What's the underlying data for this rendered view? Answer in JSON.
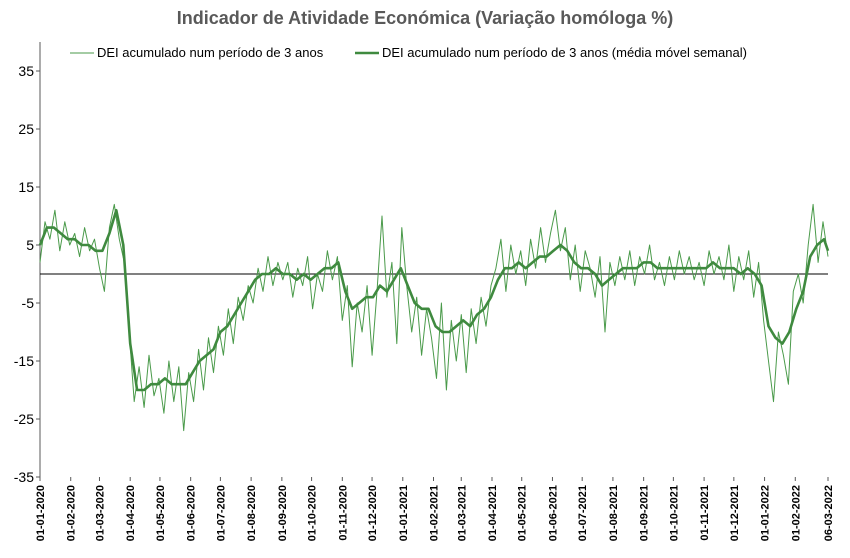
{
  "chart_data": {
    "type": "line",
    "title": "Indicador de Atividade Económica (Variação homóloga %)",
    "xlabel": "",
    "ylabel": "",
    "ylim": [
      -35,
      40
    ],
    "yticks": [
      -35,
      -25,
      -15,
      -5,
      5,
      15,
      25,
      35
    ],
    "x_tick_labels": [
      "01-01-2020",
      "01-02-2020",
      "01-03-2020",
      "01-04-2020",
      "01-05-2020",
      "01-06-2020",
      "01-07-2020",
      "01-08-2020",
      "01-09-2020",
      "01-10-2020",
      "01-11-2020",
      "01-12-2020",
      "01-01-2021",
      "01-02-2021",
      "01-03-2021",
      "01-04-2021",
      "01-05-2021",
      "01-06-2021",
      "01-07-2021",
      "01-08-2021",
      "01-09-2021",
      "01-10-2021",
      "01-11-2021",
      "01-12-2021",
      "01-01-2022",
      "01-02-2022",
      "06-03-2022"
    ],
    "grid": false,
    "legend_position": "top",
    "zero_line": true,
    "colors": {
      "daily": "#4a9a4a",
      "weekly": "#3f8a3f",
      "axis": "#595959"
    },
    "series": [
      {
        "name": "DEI acumulado num período de 3 anos",
        "style": "thin",
        "points": [
          [
            "2020-01-01",
            2
          ],
          [
            "2020-01-06",
            9
          ],
          [
            "2020-01-11",
            6
          ],
          [
            "2020-01-16",
            11
          ],
          [
            "2020-01-21",
            4
          ],
          [
            "2020-01-26",
            9
          ],
          [
            "2020-01-31",
            5
          ],
          [
            "2020-02-05",
            7
          ],
          [
            "2020-02-10",
            3
          ],
          [
            "2020-02-15",
            8
          ],
          [
            "2020-02-20",
            4
          ],
          [
            "2020-02-25",
            6
          ],
          [
            "2020-03-01",
            1
          ],
          [
            "2020-03-06",
            -3
          ],
          [
            "2020-03-11",
            8
          ],
          [
            "2020-03-16",
            12
          ],
          [
            "2020-03-21",
            6
          ],
          [
            "2020-03-26",
            2
          ],
          [
            "2020-03-31",
            -10
          ],
          [
            "2020-04-05",
            -22
          ],
          [
            "2020-04-10",
            -16
          ],
          [
            "2020-04-15",
            -23
          ],
          [
            "2020-04-20",
            -14
          ],
          [
            "2020-04-25",
            -21
          ],
          [
            "2020-04-30",
            -18
          ],
          [
            "2020-05-05",
            -24
          ],
          [
            "2020-05-10",
            -15
          ],
          [
            "2020-05-15",
            -22
          ],
          [
            "2020-05-20",
            -16
          ],
          [
            "2020-05-25",
            -27
          ],
          [
            "2020-05-30",
            -17
          ],
          [
            "2020-06-04",
            -22
          ],
          [
            "2020-06-09",
            -13
          ],
          [
            "2020-06-14",
            -20
          ],
          [
            "2020-06-19",
            -11
          ],
          [
            "2020-06-24",
            -17
          ],
          [
            "2020-06-29",
            -9
          ],
          [
            "2020-07-04",
            -14
          ],
          [
            "2020-07-09",
            -6
          ],
          [
            "2020-07-14",
            -12
          ],
          [
            "2020-07-19",
            -4
          ],
          [
            "2020-07-24",
            -8
          ],
          [
            "2020-07-29",
            -2
          ],
          [
            "2020-08-03",
            -5
          ],
          [
            "2020-08-08",
            1
          ],
          [
            "2020-08-13",
            -3
          ],
          [
            "2020-08-18",
            3
          ],
          [
            "2020-08-23",
            -2
          ],
          [
            "2020-08-28",
            2
          ],
          [
            "2020-09-02",
            -1
          ],
          [
            "2020-09-07",
            2
          ],
          [
            "2020-09-12",
            -4
          ],
          [
            "2020-09-17",
            1
          ],
          [
            "2020-09-22",
            -2
          ],
          [
            "2020-09-27",
            3
          ],
          [
            "2020-10-02",
            -6
          ],
          [
            "2020-10-07",
            0
          ],
          [
            "2020-10-12",
            -3
          ],
          [
            "2020-10-17",
            4
          ],
          [
            "2020-10-22",
            -1
          ],
          [
            "2020-10-27",
            3
          ],
          [
            "2020-11-01",
            -8
          ],
          [
            "2020-11-06",
            -2
          ],
          [
            "2020-11-11",
            -16
          ],
          [
            "2020-11-16",
            -5
          ],
          [
            "2020-11-21",
            -10
          ],
          [
            "2020-11-26",
            -2
          ],
          [
            "2020-12-01",
            -14
          ],
          [
            "2020-12-06",
            -3
          ],
          [
            "2020-12-11",
            10
          ],
          [
            "2020-12-16",
            -4
          ],
          [
            "2020-12-21",
            2
          ],
          [
            "2020-12-26",
            -12
          ],
          [
            "2020-12-31",
            8
          ],
          [
            "2021-01-05",
            -2
          ],
          [
            "2021-01-10",
            -10
          ],
          [
            "2021-01-15",
            -4
          ],
          [
            "2021-01-20",
            -14
          ],
          [
            "2021-01-25",
            -6
          ],
          [
            "2021-01-30",
            -11
          ],
          [
            "2021-02-04",
            -18
          ],
          [
            "2021-02-09",
            -5
          ],
          [
            "2021-02-14",
            -20
          ],
          [
            "2021-02-19",
            -8
          ],
          [
            "2021-02-24",
            -15
          ],
          [
            "2021-03-01",
            -7
          ],
          [
            "2021-03-06",
            -17
          ],
          [
            "2021-03-11",
            -6
          ],
          [
            "2021-03-16",
            -12
          ],
          [
            "2021-03-21",
            -4
          ],
          [
            "2021-03-26",
            -9
          ],
          [
            "2021-03-31",
            -2
          ],
          [
            "2021-04-05",
            1
          ],
          [
            "2021-04-10",
            6
          ],
          [
            "2021-04-15",
            -3
          ],
          [
            "2021-04-20",
            5
          ],
          [
            "2021-04-25",
            0
          ],
          [
            "2021-04-30",
            4
          ],
          [
            "2021-05-05",
            -2
          ],
          [
            "2021-05-10",
            6
          ],
          [
            "2021-05-15",
            1
          ],
          [
            "2021-05-20",
            8
          ],
          [
            "2021-05-25",
            2
          ],
          [
            "2021-05-30",
            7
          ],
          [
            "2021-06-04",
            11
          ],
          [
            "2021-06-09",
            4
          ],
          [
            "2021-06-14",
            8
          ],
          [
            "2021-06-19",
            -1
          ],
          [
            "2021-06-24",
            5
          ],
          [
            "2021-06-29",
            -3
          ],
          [
            "2021-07-04",
            4
          ],
          [
            "2021-07-09",
            1
          ],
          [
            "2021-07-14",
            -4
          ],
          [
            "2021-07-19",
            3
          ],
          [
            "2021-07-24",
            -10
          ],
          [
            "2021-07-29",
            2
          ],
          [
            "2021-08-03",
            -2
          ],
          [
            "2021-08-08",
            3
          ],
          [
            "2021-08-13",
            -1
          ],
          [
            "2021-08-18",
            4
          ],
          [
            "2021-08-23",
            -2
          ],
          [
            "2021-08-28",
            3
          ],
          [
            "2021-09-02",
            0
          ],
          [
            "2021-09-07",
            5
          ],
          [
            "2021-09-12",
            -1
          ],
          [
            "2021-09-17",
            2
          ],
          [
            "2021-09-22",
            -2
          ],
          [
            "2021-09-27",
            3
          ],
          [
            "2021-10-02",
            -1
          ],
          [
            "2021-10-07",
            4
          ],
          [
            "2021-10-12",
            0
          ],
          [
            "2021-10-17",
            3
          ],
          [
            "2021-10-22",
            -1
          ],
          [
            "2021-10-27",
            2
          ],
          [
            "2021-11-01",
            -2
          ],
          [
            "2021-11-06",
            4
          ],
          [
            "2021-11-11",
            0
          ],
          [
            "2021-11-16",
            3
          ],
          [
            "2021-11-21",
            -1
          ],
          [
            "2021-11-26",
            5
          ],
          [
            "2021-12-01",
            -3
          ],
          [
            "2021-12-06",
            3
          ],
          [
            "2021-12-11",
            -1
          ],
          [
            "2021-12-16",
            4
          ],
          [
            "2021-12-21",
            -4
          ],
          [
            "2021-12-26",
            2
          ],
          [
            "2021-12-31",
            -8
          ],
          [
            "2022-01-05",
            -15
          ],
          [
            "2022-01-10",
            -22
          ],
          [
            "2022-01-15",
            -10
          ],
          [
            "2022-01-20",
            -14
          ],
          [
            "2022-01-25",
            -19
          ],
          [
            "2022-01-30",
            -3
          ],
          [
            "2022-02-04",
            0
          ],
          [
            "2022-02-09",
            -5
          ],
          [
            "2022-02-14",
            5
          ],
          [
            "2022-02-19",
            12
          ],
          [
            "2022-02-24",
            2
          ],
          [
            "2022-03-01",
            9
          ],
          [
            "2022-03-06",
            3
          ]
        ]
      },
      {
        "name": "DEI acumulado num período de 3 anos (média móvel semanal)",
        "style": "thick",
        "points": [
          [
            "2020-01-01",
            5
          ],
          [
            "2020-01-08",
            8
          ],
          [
            "2020-01-15",
            8
          ],
          [
            "2020-01-22",
            7
          ],
          [
            "2020-01-29",
            6
          ],
          [
            "2020-02-05",
            6
          ],
          [
            "2020-02-12",
            5
          ],
          [
            "2020-02-19",
            5
          ],
          [
            "2020-02-26",
            4
          ],
          [
            "2020-03-04",
            4
          ],
          [
            "2020-03-11",
            7
          ],
          [
            "2020-03-18",
            11
          ],
          [
            "2020-03-25",
            5
          ],
          [
            "2020-04-01",
            -12
          ],
          [
            "2020-04-08",
            -20
          ],
          [
            "2020-04-15",
            -20
          ],
          [
            "2020-04-22",
            -19
          ],
          [
            "2020-04-29",
            -19
          ],
          [
            "2020-05-06",
            -18
          ],
          [
            "2020-05-13",
            -19
          ],
          [
            "2020-05-20",
            -19
          ],
          [
            "2020-05-27",
            -19
          ],
          [
            "2020-06-03",
            -17
          ],
          [
            "2020-06-10",
            -15
          ],
          [
            "2020-06-17",
            -14
          ],
          [
            "2020-06-24",
            -13
          ],
          [
            "2020-07-01",
            -10
          ],
          [
            "2020-07-08",
            -9
          ],
          [
            "2020-07-15",
            -7
          ],
          [
            "2020-07-22",
            -5
          ],
          [
            "2020-07-29",
            -3
          ],
          [
            "2020-08-05",
            -1
          ],
          [
            "2020-08-12",
            0
          ],
          [
            "2020-08-19",
            0
          ],
          [
            "2020-08-26",
            1
          ],
          [
            "2020-09-02",
            0
          ],
          [
            "2020-09-09",
            0
          ],
          [
            "2020-09-16",
            -1
          ],
          [
            "2020-09-23",
            0
          ],
          [
            "2020-09-30",
            -1
          ],
          [
            "2020-10-07",
            0
          ],
          [
            "2020-10-14",
            1
          ],
          [
            "2020-10-21",
            1
          ],
          [
            "2020-10-28",
            2
          ],
          [
            "2020-11-04",
            -3
          ],
          [
            "2020-11-11",
            -6
          ],
          [
            "2020-11-18",
            -5
          ],
          [
            "2020-11-25",
            -4
          ],
          [
            "2020-12-02",
            -4
          ],
          [
            "2020-12-09",
            -2
          ],
          [
            "2020-12-16",
            -3
          ],
          [
            "2020-12-23",
            -1
          ],
          [
            "2020-12-30",
            1
          ],
          [
            "2021-01-06",
            -2
          ],
          [
            "2021-01-13",
            -5
          ],
          [
            "2021-01-20",
            -6
          ],
          [
            "2021-01-27",
            -6
          ],
          [
            "2021-02-03",
            -9
          ],
          [
            "2021-02-10",
            -10
          ],
          [
            "2021-02-17",
            -10
          ],
          [
            "2021-02-24",
            -9
          ],
          [
            "2021-03-03",
            -8
          ],
          [
            "2021-03-10",
            -9
          ],
          [
            "2021-03-17",
            -7
          ],
          [
            "2021-03-24",
            -6
          ],
          [
            "2021-03-31",
            -4
          ],
          [
            "2021-04-07",
            -1
          ],
          [
            "2021-04-14",
            1
          ],
          [
            "2021-04-21",
            1
          ],
          [
            "2021-04-28",
            2
          ],
          [
            "2021-05-05",
            1
          ],
          [
            "2021-05-12",
            2
          ],
          [
            "2021-05-19",
            3
          ],
          [
            "2021-05-26",
            3
          ],
          [
            "2021-06-02",
            4
          ],
          [
            "2021-06-09",
            5
          ],
          [
            "2021-06-16",
            4
          ],
          [
            "2021-06-23",
            2
          ],
          [
            "2021-06-30",
            1
          ],
          [
            "2021-07-07",
            1
          ],
          [
            "2021-07-14",
            0
          ],
          [
            "2021-07-21",
            -2
          ],
          [
            "2021-07-28",
            -1
          ],
          [
            "2021-08-04",
            0
          ],
          [
            "2021-08-11",
            1
          ],
          [
            "2021-08-18",
            1
          ],
          [
            "2021-08-25",
            1
          ],
          [
            "2021-09-01",
            2
          ],
          [
            "2021-09-08",
            2
          ],
          [
            "2021-09-15",
            1
          ],
          [
            "2021-09-22",
            1
          ],
          [
            "2021-09-29",
            1
          ],
          [
            "2021-10-06",
            1
          ],
          [
            "2021-10-13",
            1
          ],
          [
            "2021-10-20",
            1
          ],
          [
            "2021-10-27",
            1
          ],
          [
            "2021-11-03",
            1
          ],
          [
            "2021-11-10",
            2
          ],
          [
            "2021-11-17",
            1
          ],
          [
            "2021-11-24",
            1
          ],
          [
            "2021-12-01",
            1
          ],
          [
            "2021-12-08",
            0
          ],
          [
            "2021-12-15",
            1
          ],
          [
            "2021-12-22",
            0
          ],
          [
            "2021-12-29",
            -2
          ],
          [
            "2022-01-05",
            -9
          ],
          [
            "2022-01-12",
            -11
          ],
          [
            "2022-01-19",
            -12
          ],
          [
            "2022-01-26",
            -10
          ],
          [
            "2022-02-02",
            -6
          ],
          [
            "2022-02-09",
            -3
          ],
          [
            "2022-02-16",
            3
          ],
          [
            "2022-02-23",
            5
          ],
          [
            "2022-03-02",
            6
          ],
          [
            "2022-03-06",
            4
          ]
        ]
      }
    ]
  }
}
